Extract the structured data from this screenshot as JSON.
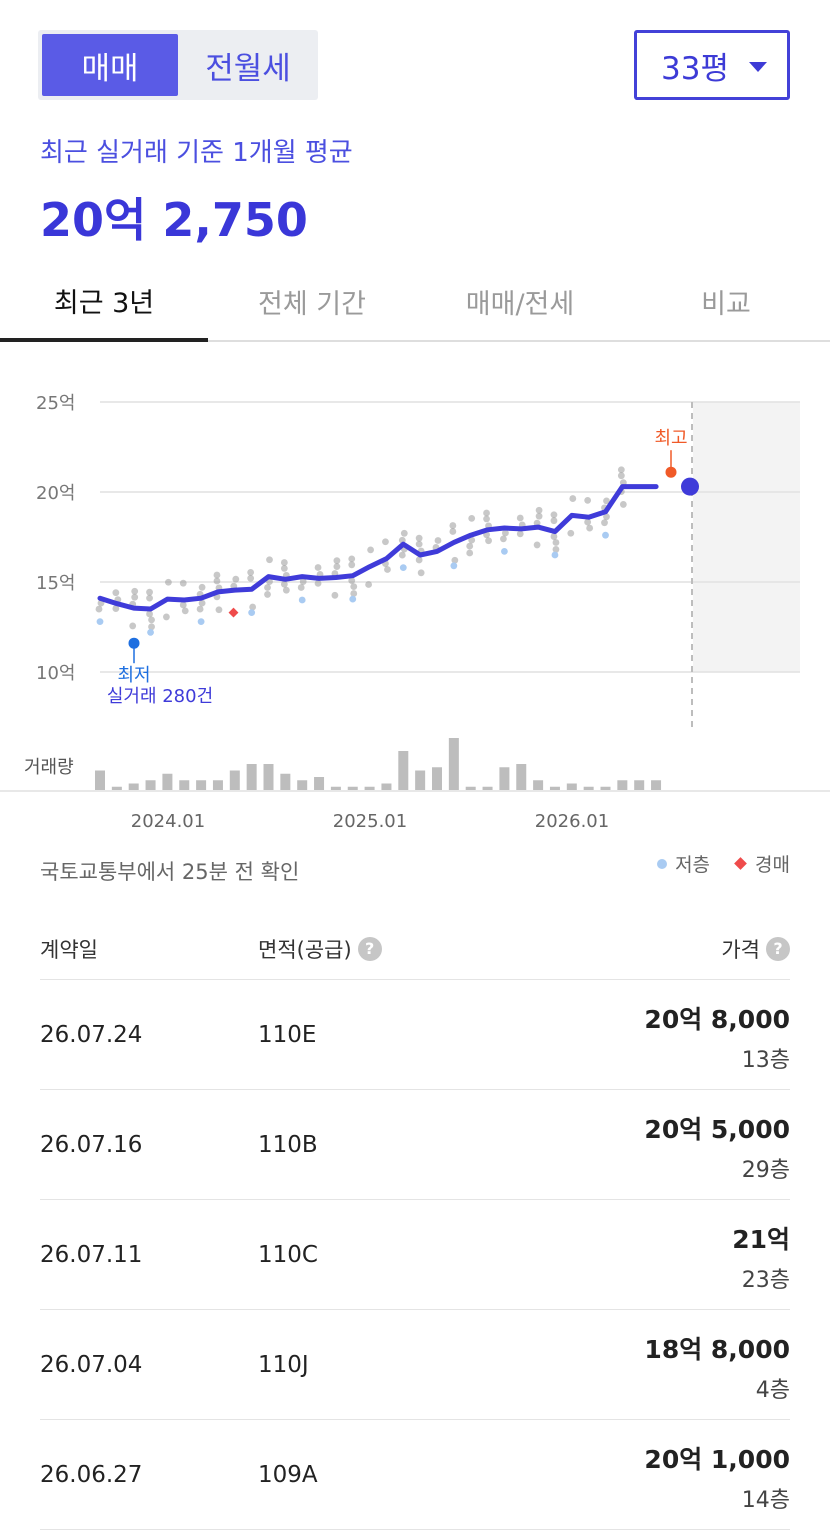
{
  "toggle": {
    "sale": "매매",
    "rent": "전월세"
  },
  "size_select": {
    "value": "33평"
  },
  "average": {
    "label": "최근 실거래 기준 1개월 평균",
    "value": "20억 2,750"
  },
  "tabs": [
    {
      "label": "최근 3년"
    },
    {
      "label": "전체 기간"
    },
    {
      "label": "매매/전세"
    },
    {
      "label": "비교"
    }
  ],
  "chart_data": {
    "type": "line",
    "y_ticks": [
      "25억",
      "20억",
      "15억",
      "10억"
    ],
    "ylim": [
      10,
      25
    ],
    "x_ticks": [
      "2024.01",
      "2025.01",
      "2026.01"
    ],
    "x": [
      "2023-10",
      "2023-11",
      "2023-12",
      "2024-01",
      "2024-02",
      "2024-03",
      "2024-04",
      "2024-05",
      "2024-06",
      "2024-07",
      "2024-08",
      "2024-09",
      "2024-10",
      "2024-11",
      "2024-12",
      "2025-01",
      "2025-02",
      "2025-03",
      "2025-04",
      "2025-05",
      "2025-06",
      "2025-07",
      "2025-08",
      "2025-09",
      "2025-10",
      "2025-11",
      "2025-12",
      "2026-01",
      "2026-02",
      "2026-03",
      "2026-04",
      "2026-05",
      "2026-06",
      "2026-07"
    ],
    "average_series": [
      14.1,
      13.8,
      13.55,
      13.5,
      14.05,
      14.0,
      14.1,
      14.45,
      14.55,
      14.6,
      15.3,
      15.15,
      15.3,
      15.2,
      15.25,
      15.35,
      15.85,
      16.3,
      17.1,
      16.5,
      16.7,
      17.2,
      17.6,
      17.9,
      18.0,
      17.95,
      18.05,
      17.8,
      18.7,
      18.6,
      18.9,
      20.3,
      20.3,
      20.3
    ],
    "volume": [
      6,
      1,
      2,
      3,
      5,
      3,
      3,
      3,
      6,
      8,
      8,
      5,
      3,
      4,
      1,
      1,
      1,
      2,
      12,
      6,
      7,
      16,
      1,
      1,
      7,
      8,
      3,
      1,
      2,
      1,
      1,
      3,
      3,
      3
    ],
    "volume_label": "거래량",
    "min_marker": {
      "label_line1": "최저",
      "label_line2": "실거래 280건",
      "value": 11.6
    },
    "max_marker": {
      "label": "최고",
      "value": 21.1
    },
    "current_value": 20.3,
    "series_colors": {
      "line": "#3f3bd9",
      "low_floor": "#a9cbf2",
      "auction": "#ef4b4b",
      "trade": "#9a9a9a",
      "max": "#f05a28",
      "min": "#1e6fe0",
      "volume": "#bdbdbd"
    }
  },
  "source_note": "국토교통부에서 25분 전 확인",
  "legend": {
    "low_floor": "저층",
    "auction": "경매"
  },
  "table": {
    "headers": {
      "date": "계약일",
      "area": "면적(공급)",
      "price": "가격"
    },
    "rows": [
      {
        "date": "26.07.24",
        "area": "110E",
        "price": "20억 8,000",
        "floor": "13층"
      },
      {
        "date": "26.07.16",
        "area": "110B",
        "price": "20억 5,000",
        "floor": "29층"
      },
      {
        "date": "26.07.11",
        "area": "110C",
        "price": "21억",
        "floor": "23층"
      },
      {
        "date": "26.07.04",
        "area": "110J",
        "price": "18억 8,000",
        "floor": "4층"
      },
      {
        "date": "26.06.27",
        "area": "109A",
        "price": "20억 1,000",
        "floor": "14층"
      }
    ]
  }
}
